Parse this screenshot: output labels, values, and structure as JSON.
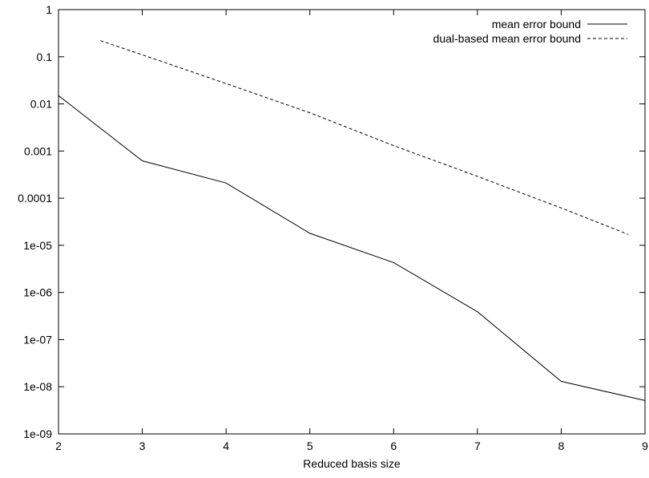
{
  "chart_data": {
    "type": "line",
    "title": "",
    "xlabel": "Reduced basis size",
    "ylabel": "",
    "xlim": [
      2,
      9
    ],
    "ylim": [
      1e-09,
      1
    ],
    "yscale": "log",
    "grid": false,
    "legend_position": "top-right",
    "x_ticks": [
      "2",
      "3",
      "4",
      "5",
      "6",
      "7",
      "8",
      "9"
    ],
    "y_ticks": [
      "1e-09",
      "1e-08",
      "1e-07",
      "1e-06",
      "1e-05",
      "0.0001",
      "0.001",
      "0.01",
      "0.1",
      "1"
    ],
    "series": [
      {
        "name": "mean error bound",
        "style": "solid",
        "color": "#000000",
        "x": [
          2,
          3,
          4,
          5,
          6,
          7,
          8,
          9
        ],
        "y": [
          0.015,
          0.00062,
          0.00021,
          1.8e-05,
          4.3e-06,
          3.9e-07,
          1.3e-08,
          5.1e-09
        ]
      },
      {
        "name": "dual-based mean error bound",
        "style": "dashed",
        "color": "#000000",
        "x": [
          2.5,
          3,
          4,
          5,
          6,
          7,
          8,
          8.8
        ],
        "y": [
          0.22,
          0.11,
          0.027,
          0.0065,
          0.0013,
          0.00029,
          6.2e-05,
          1.7e-05
        ]
      }
    ]
  }
}
